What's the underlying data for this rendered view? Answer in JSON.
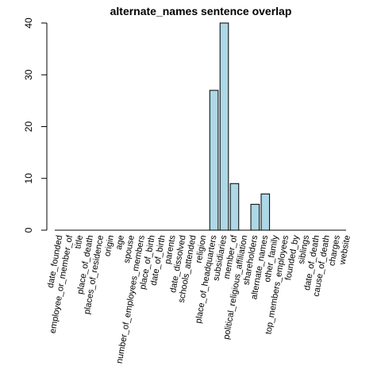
{
  "chart_data": {
    "type": "bar",
    "title": "alternate_names sentence overlap",
    "xlabel": "",
    "ylabel": "",
    "ylim": [
      0,
      40
    ],
    "yticks": [
      0,
      10,
      20,
      30,
      40
    ],
    "bar_color": "#add8e6",
    "categories": [
      "date_founded",
      "employee_or_member_of",
      "title",
      "place_of_death",
      "places_of_residence",
      "origin",
      "age",
      "spouse",
      "number_of_employees_members",
      "place_of_birth",
      "date_of_birth",
      "parents",
      "date_dissolved",
      "schools_attended",
      "religion",
      "place_of_headquarters",
      "subsidiaries",
      "member_of",
      "political_religious_affiliation",
      "shareholders",
      "alternate_names",
      "other_family",
      "top_members_employees",
      "founded_by",
      "siblings",
      "date_of_death",
      "cause_of_death",
      "charges",
      "website"
    ],
    "values": [
      0,
      0,
      0,
      0,
      0,
      0,
      0,
      0,
      0,
      0,
      0,
      0,
      0,
      0,
      0,
      27,
      40,
      9,
      0,
      5,
      7,
      0,
      0,
      0,
      0,
      0,
      0,
      0,
      0
    ]
  }
}
